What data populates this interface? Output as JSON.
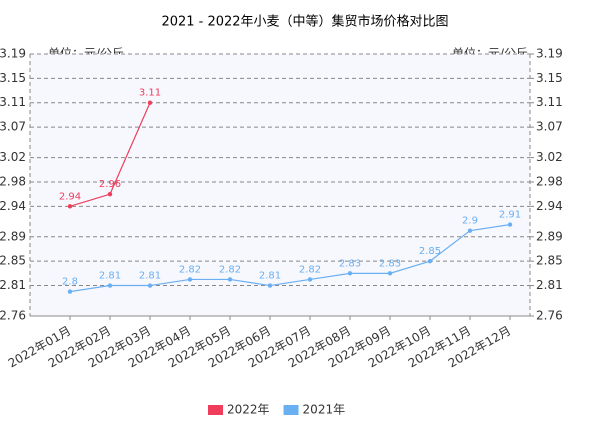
{
  "chart_data": {
    "type": "line",
    "title": "2021 - 2022年小麦（中等）集贸市场价格对比图",
    "y_label": "单位：元/公斤",
    "y2_label": "单位：元/公斤",
    "categories": [
      "2022年01月",
      "2022年02月",
      "2022年03月",
      "2022年04月",
      "2022年05月",
      "2022年06月",
      "2022年07月",
      "2022年08月",
      "2022年09月",
      "2022年10月",
      "2022年11月",
      "2022年12月"
    ],
    "series": [
      {
        "name": "2022年",
        "color": "#f03d5c",
        "values": [
          2.94,
          2.96,
          3.11,
          null,
          null,
          null,
          null,
          null,
          null,
          null,
          null,
          null
        ]
      },
      {
        "name": "2021年",
        "color": "#6aaff2",
        "values": [
          2.8,
          2.81,
          2.81,
          2.82,
          2.82,
          2.81,
          2.82,
          2.83,
          2.83,
          2.85,
          2.9,
          2.91
        ]
      }
    ],
    "ylim": [
      2.76,
      3.19
    ],
    "yticks": [
      2.76,
      2.81,
      2.85,
      2.89,
      2.94,
      2.98,
      3.02,
      3.07,
      3.11,
      3.15,
      3.19
    ],
    "y2lim": [
      2.76,
      3.19
    ],
    "y2ticks": [
      2.76,
      2.81,
      2.85,
      2.89,
      2.94,
      2.98,
      3.02,
      3.07,
      3.11,
      3.15,
      3.19
    ],
    "grid": true,
    "legend": "bottom"
  }
}
